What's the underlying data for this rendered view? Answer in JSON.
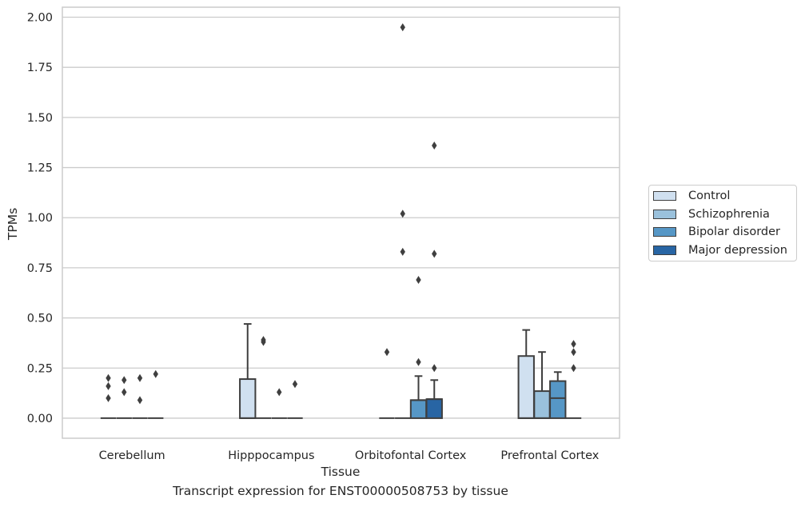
{
  "chart_data": {
    "type": "box",
    "title": "",
    "caption": "Transcript expression for ENST00000508753 by tissue",
    "xlabel": "Tissue",
    "ylabel": "TPMs",
    "ylim": [
      -0.1,
      2.05
    ],
    "yticks": [
      "0.00",
      "0.25",
      "0.50",
      "0.75",
      "1.00",
      "1.25",
      "1.50",
      "1.75",
      "2.00"
    ],
    "ytick_values": [
      0,
      0.25,
      0.5,
      0.75,
      1.0,
      1.25,
      1.5,
      1.75,
      2.0
    ],
    "grid": "horizontal",
    "legend_position": "right",
    "categories": [
      "Cerebellum",
      "Hipppocampus",
      "Orbitofontal Cortex",
      "Prefrontal Cortex"
    ],
    "series": [
      {
        "name": "Control",
        "color": "#d0e0f0",
        "boxes": [
          {
            "q1": 0,
            "median": 0,
            "q3": 0,
            "whisker_low": 0,
            "whisker_high": 0,
            "outliers": [
              0.1,
              0.16,
              0.2
            ]
          },
          {
            "q1": 0,
            "median": 0,
            "q3": 0.195,
            "whisker_low": 0,
            "whisker_high": 0.47,
            "outliers": []
          },
          {
            "q1": 0,
            "median": 0,
            "q3": 0,
            "whisker_low": 0,
            "whisker_high": 0,
            "outliers": [
              0.33
            ]
          },
          {
            "q1": 0,
            "median": 0,
            "q3": 0.31,
            "whisker_low": 0,
            "whisker_high": 0.44,
            "outliers": []
          }
        ]
      },
      {
        "name": "Schizophrenia",
        "color": "#9ac1dc",
        "boxes": [
          {
            "q1": 0,
            "median": 0,
            "q3": 0,
            "whisker_low": 0,
            "whisker_high": 0,
            "outliers": [
              0.13,
              0.19
            ]
          },
          {
            "q1": 0,
            "median": 0,
            "q3": 0,
            "whisker_low": 0,
            "whisker_high": 0,
            "outliers": [
              0.38,
              0.39
            ]
          },
          {
            "q1": 0,
            "median": 0,
            "q3": 0,
            "whisker_low": 0,
            "whisker_high": 0,
            "outliers": [
              0.83,
              1.02,
              1.95
            ]
          },
          {
            "q1": 0,
            "median": 0,
            "q3": 0.135,
            "whisker_low": 0,
            "whisker_high": 0.33,
            "outliers": []
          }
        ]
      },
      {
        "name": "Bipolar disorder",
        "color": "#5697c6",
        "boxes": [
          {
            "q1": 0,
            "median": 0,
            "q3": 0,
            "whisker_low": 0,
            "whisker_high": 0,
            "outliers": [
              0.09,
              0.2
            ]
          },
          {
            "q1": 0,
            "median": 0,
            "q3": 0,
            "whisker_low": 0,
            "whisker_high": 0,
            "outliers": [
              0.13
            ]
          },
          {
            "q1": 0,
            "median": 0.09,
            "q3": 0.09,
            "whisker_low": 0,
            "whisker_high": 0.21,
            "outliers": [
              0.28,
              0.69
            ]
          },
          {
            "q1": 0,
            "median": 0.1,
            "q3": 0.185,
            "whisker_low": 0,
            "whisker_high": 0.23,
            "outliers": []
          }
        ]
      },
      {
        "name": "Major depression",
        "color": "#2865a4",
        "boxes": [
          {
            "q1": 0,
            "median": 0,
            "q3": 0,
            "whisker_low": 0,
            "whisker_high": 0,
            "outliers": [
              0.22
            ]
          },
          {
            "q1": 0,
            "median": 0,
            "q3": 0,
            "whisker_low": 0,
            "whisker_high": 0,
            "outliers": [
              0.17
            ]
          },
          {
            "q1": 0,
            "median": 0.095,
            "q3": 0.095,
            "whisker_low": 0,
            "whisker_high": 0.19,
            "outliers": [
              0.25,
              0.82,
              1.36
            ]
          },
          {
            "q1": 0,
            "median": 0,
            "q3": 0,
            "whisker_low": 0,
            "whisker_high": 0,
            "outliers": [
              0.25,
              0.33,
              0.37
            ]
          }
        ]
      }
    ]
  }
}
